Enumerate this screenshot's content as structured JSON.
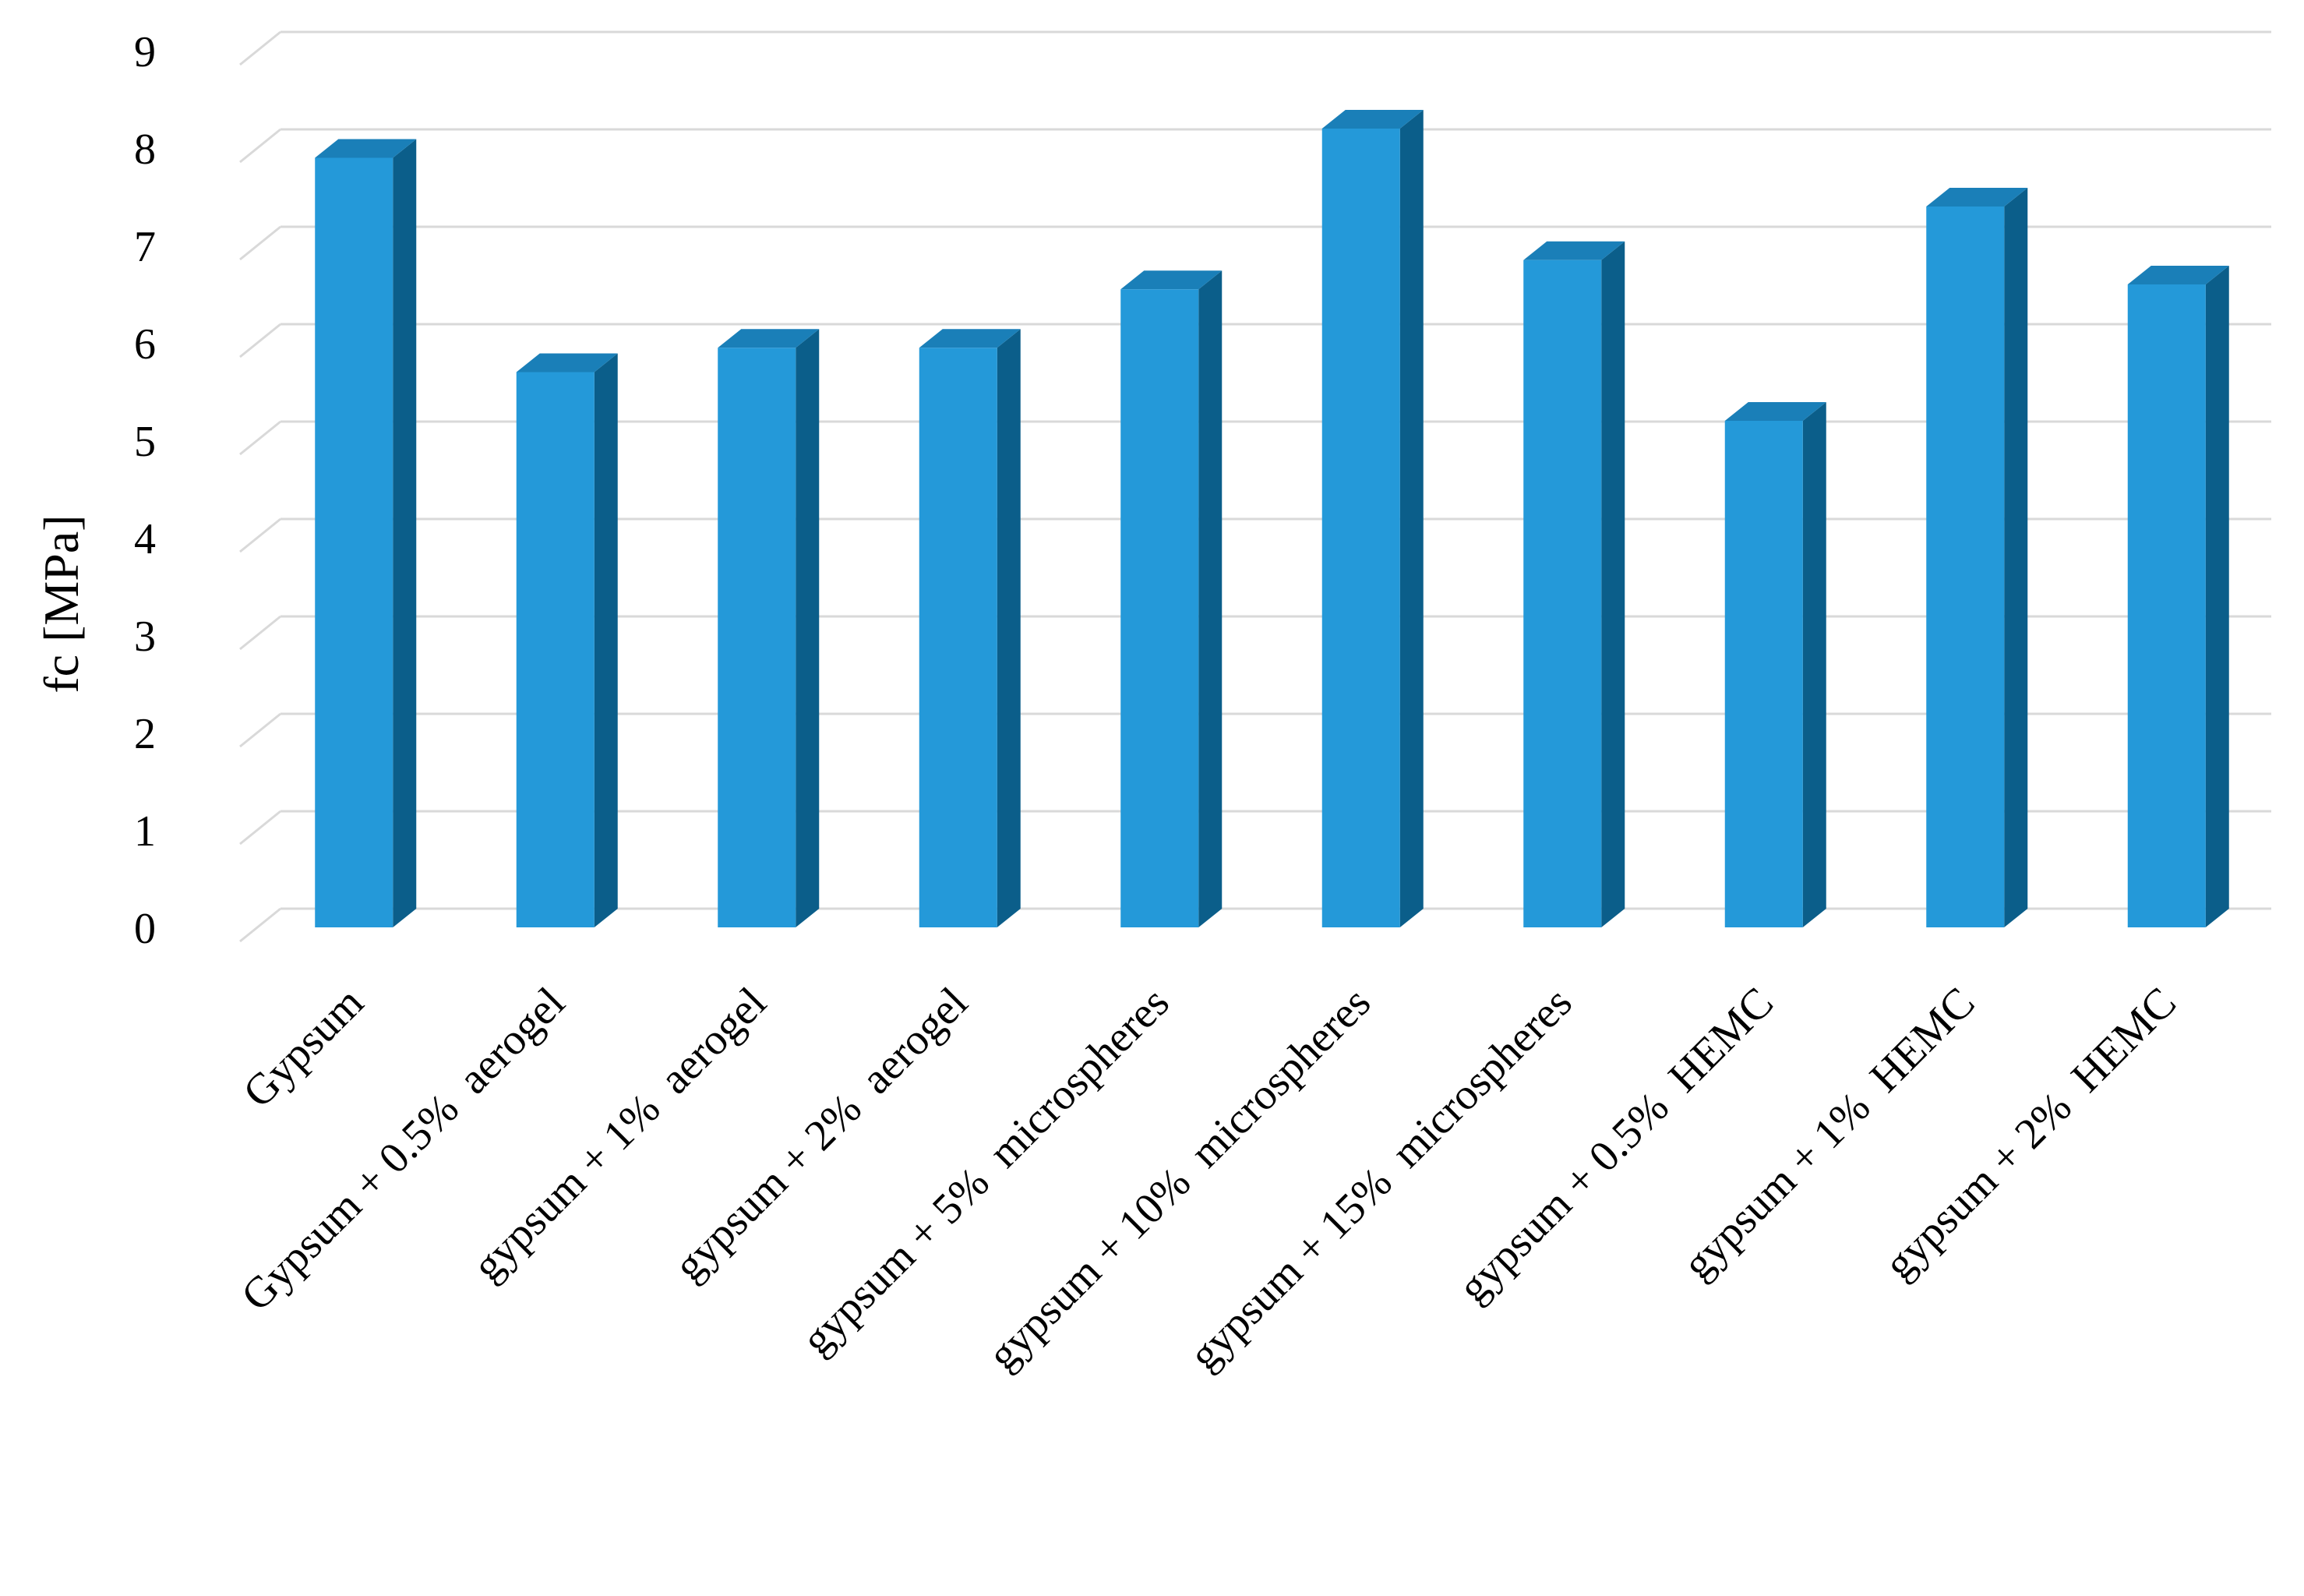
{
  "chart_data": {
    "type": "bar",
    "title": "",
    "xlabel": "",
    "ylabel": "fc [MPa]",
    "ylim": [
      0,
      9
    ],
    "y_ticks": [
      "0",
      "1",
      "2",
      "3",
      "4",
      "5",
      "6",
      "7",
      "8",
      "9"
    ],
    "grid": true,
    "legend": "none",
    "style": "3d-column",
    "colors": {
      "bar_front": "#2499d9",
      "bar_side": "#0b5e8a",
      "bar_top": "#1a7fb8",
      "grid": "#d9d9d9"
    },
    "categories": [
      "Gypsum",
      "Gypsum + 0.5%  aerogel",
      "gypsum + 1%  aerogel",
      "gypsum + 2%  aerogel",
      "gypsum + 5%  microspheres",
      "gypsum + 10%  microspheres",
      "gypsum + 15%  microspheres",
      "gypsum + 0.5%  HEMC",
      "gypsum + 1%  HEMC",
      "gypsum + 2%  HEMC"
    ],
    "series": [
      {
        "values": [
          7.9,
          5.7,
          5.95,
          5.95,
          6.55,
          8.2,
          6.85,
          5.2,
          7.4,
          6.6
        ]
      }
    ]
  }
}
